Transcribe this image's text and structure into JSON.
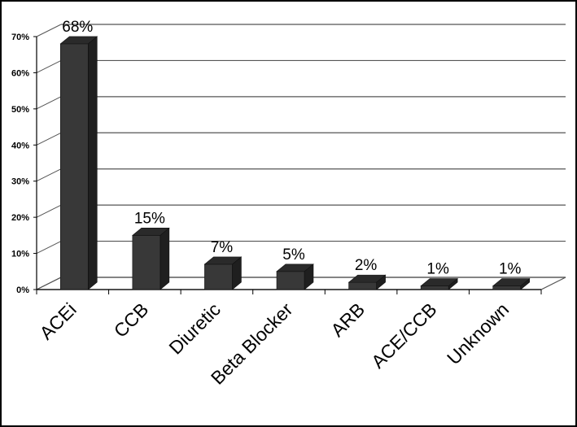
{
  "chart_data": {
    "type": "bar",
    "style": "3d-column",
    "categories": [
      "ACEi",
      "CCB",
      "Diuretic",
      "Beta Blocker",
      "ARB",
      "ACE/CCB",
      "Unknown"
    ],
    "values": [
      68,
      15,
      7,
      5,
      2,
      1,
      1
    ],
    "data_labels": [
      "68%",
      "15%",
      "7%",
      "5%",
      "2%",
      "1%",
      "1%"
    ],
    "y_ticks": [
      "0%",
      "10%",
      "20%",
      "30%",
      "40%",
      "50%",
      "60%",
      "70%"
    ],
    "ylim": [
      0,
      70
    ],
    "grid": true,
    "legend": "none",
    "colors": {
      "bar_front": "#383838",
      "bar_side": "#1f1f1f",
      "bar_top": "#2a2a2a",
      "grid": "#555555",
      "axis": "#000000",
      "frame": "#000000"
    }
  }
}
